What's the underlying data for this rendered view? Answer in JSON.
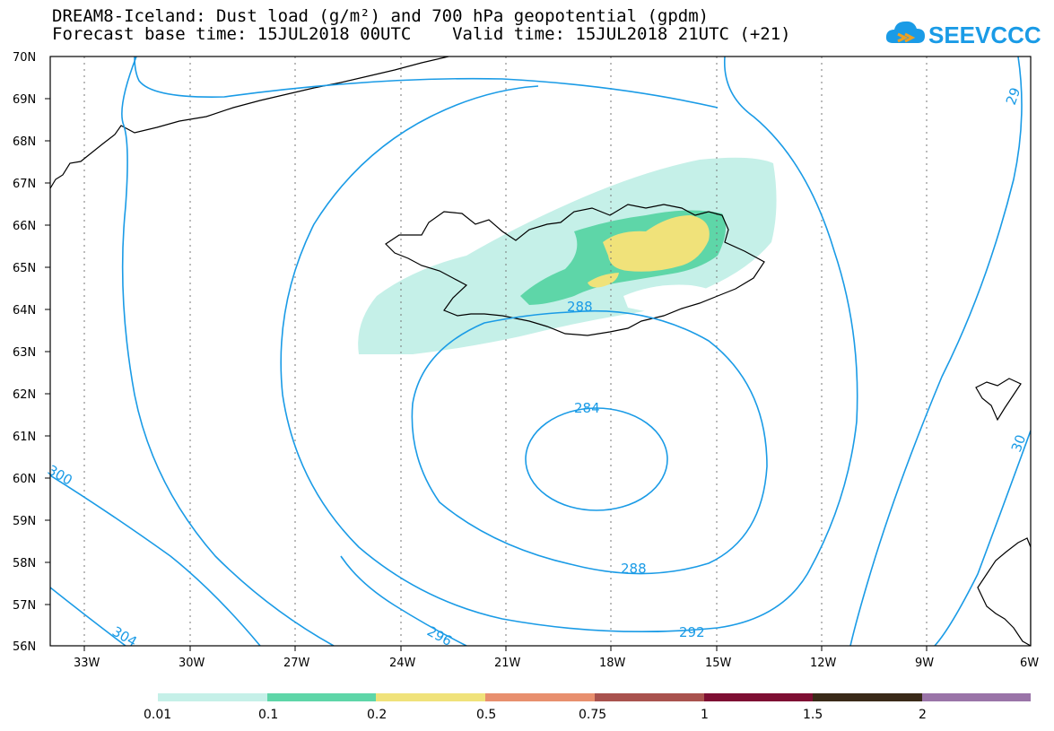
{
  "header": {
    "title_line1": "DREAM8-Iceland: Dust load (g/m²) and 700 hPa geopotential (gpdm)",
    "title_line2": "Forecast base time: 15JUL2018 00UTC    Valid time: 15JUL2018 21UTC (+21)",
    "logo_text": "SEEVCCC",
    "logo_color": "#1a9be6"
  },
  "map": {
    "lat_labels": [
      "70N",
      "69N",
      "68N",
      "67N",
      "66N",
      "65N",
      "64N",
      "63N",
      "62N",
      "61N",
      "60N",
      "59N",
      "58N",
      "57N",
      "56N"
    ],
    "lon_labels": [
      "33W",
      "30W",
      "27W",
      "24W",
      "21W",
      "18W",
      "15W",
      "12W",
      "9W",
      "6W"
    ],
    "contour_color": "#1a9be6",
    "contour_labels": [
      "288",
      "284",
      "288",
      "292",
      "296",
      "304",
      "300",
      "29",
      "30"
    ],
    "dust_colors": {
      "level1": "#c5f0e8",
      "level2": "#5ed6a8",
      "level3": "#f0e27a",
      "land_clear": "#ffffff"
    }
  },
  "colorbar": {
    "colors": [
      "#c5f0e8",
      "#5ed6a8",
      "#f0e27a",
      "#e88f6e",
      "#a9524e",
      "#7e0f33",
      "#3a2a18",
      "#9a74a8"
    ],
    "labels": [
      "0.01",
      "0.1",
      "0.2",
      "0.5",
      "0.75",
      "1",
      "1.5",
      "2"
    ]
  }
}
